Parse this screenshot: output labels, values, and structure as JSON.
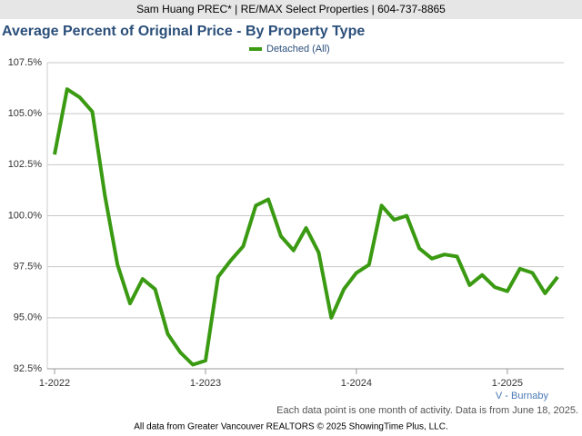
{
  "header": "Sam Huang PREC* | RE/MAX Select Properties | 604-737-8865",
  "chart_data": {
    "type": "line",
    "title": "Average Percent of Original Price - By Property Type",
    "categories": [
      "1-2022",
      null,
      null,
      null,
      null,
      null,
      null,
      null,
      null,
      null,
      null,
      null,
      "1-2023",
      null,
      null,
      null,
      null,
      null,
      null,
      null,
      null,
      null,
      null,
      null,
      "1-2024",
      null,
      null,
      null,
      null,
      null,
      null,
      null,
      null,
      null,
      null,
      null,
      "1-2025",
      null,
      null,
      null,
      null
    ],
    "series": [
      {
        "name": "Detached (All)",
        "color": "#3a9a12",
        "values": [
          103.0,
          106.2,
          105.8,
          105.1,
          101.0,
          97.6,
          95.7,
          96.9,
          96.4,
          94.2,
          93.3,
          92.7,
          92.9,
          97.0,
          97.8,
          98.5,
          100.5,
          100.8,
          99.0,
          98.3,
          99.4,
          98.2,
          95.0,
          96.4,
          97.2,
          97.6,
          100.5,
          99.8,
          100.0,
          98.4,
          97.9,
          98.1,
          98.0,
          96.6,
          97.1,
          96.5,
          96.3,
          97.4,
          97.2,
          96.2,
          97.0
        ]
      }
    ],
    "ylim": [
      92.5,
      107.5
    ],
    "yticks": [
      {
        "value": 92.5,
        "label": "92.5%"
      },
      {
        "value": 95,
        "label": "95.0%"
      },
      {
        "value": 97.5,
        "label": "97.5%"
      },
      {
        "value": 100,
        "label": "100.0%"
      },
      {
        "value": 102.5,
        "label": "102.5%"
      },
      {
        "value": 105,
        "label": "105.0%"
      },
      {
        "value": 107.5,
        "label": "107.5%"
      }
    ],
    "grid": true,
    "legend": "top",
    "annotation": "V - Burnaby",
    "note": "Each data point is one month of activity. Data is from June 18, 2025."
  },
  "footer": "All data from Greater Vancouver REALTORS © 2025 ShowingTime Plus, LLC."
}
